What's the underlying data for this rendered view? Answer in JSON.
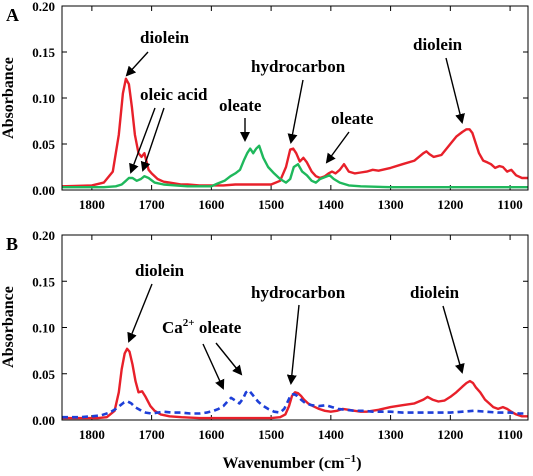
{
  "figure": {
    "xlabel_main": "Wavenumber (cm",
    "xlabel_sup": "−1",
    "xlabel_close": ")"
  },
  "chart_data": [
    {
      "type": "line",
      "panel_label": "A",
      "title": "",
      "xlabel": "",
      "ylabel": "Absorbance",
      "xlim": [
        1850,
        1070
      ],
      "ylim": [
        0,
        0.2
      ],
      "x_reversed": true,
      "x_ticks": [
        1800,
        1700,
        1600,
        1500,
        1400,
        1300,
        1200,
        1100
      ],
      "y_ticks": [
        0.0,
        0.05,
        0.1,
        0.15,
        0.2
      ],
      "y_tick_labels": [
        "0.00",
        "0.05",
        "0.10",
        "0.15",
        "0.20"
      ],
      "grid": false,
      "legend": "none",
      "series": [
        {
          "color": "#e8202a",
          "dash": "solid",
          "x": [
            1850,
            1800,
            1780,
            1765,
            1755,
            1748,
            1743,
            1738,
            1733,
            1728,
            1722,
            1717,
            1712,
            1705,
            1700,
            1690,
            1680,
            1670,
            1660,
            1650,
            1640,
            1620,
            1600,
            1580,
            1560,
            1540,
            1520,
            1500,
            1485,
            1475,
            1468,
            1463,
            1458,
            1452,
            1446,
            1440,
            1432,
            1425,
            1418,
            1410,
            1404,
            1398,
            1392,
            1385,
            1378,
            1370,
            1360,
            1350,
            1340,
            1330,
            1320,
            1300,
            1280,
            1260,
            1245,
            1240,
            1235,
            1228,
            1215,
            1200,
            1190,
            1180,
            1173,
            1168,
            1163,
            1158,
            1152,
            1145,
            1138,
            1132,
            1125,
            1118,
            1112,
            1105,
            1098,
            1090,
            1080,
            1070
          ],
          "y": [
            0.004,
            0.005,
            0.008,
            0.02,
            0.06,
            0.105,
            0.121,
            0.115,
            0.09,
            0.06,
            0.04,
            0.036,
            0.04,
            0.022,
            0.018,
            0.012,
            0.009,
            0.008,
            0.007,
            0.006,
            0.006,
            0.005,
            0.005,
            0.005,
            0.006,
            0.006,
            0.006,
            0.006,
            0.01,
            0.025,
            0.044,
            0.045,
            0.04,
            0.031,
            0.035,
            0.03,
            0.02,
            0.015,
            0.013,
            0.015,
            0.018,
            0.02,
            0.018,
            0.022,
            0.028,
            0.02,
            0.018,
            0.019,
            0.02,
            0.022,
            0.021,
            0.024,
            0.028,
            0.032,
            0.04,
            0.042,
            0.039,
            0.036,
            0.038,
            0.05,
            0.058,
            0.063,
            0.066,
            0.066,
            0.062,
            0.052,
            0.04,
            0.032,
            0.03,
            0.028,
            0.024,
            0.026,
            0.025,
            0.02,
            0.022,
            0.016,
            0.013,
            0.013
          ]
        },
        {
          "color": "#1fb85c",
          "dash": "solid",
          "x": [
            1850,
            1780,
            1760,
            1750,
            1743,
            1738,
            1732,
            1725,
            1718,
            1712,
            1705,
            1695,
            1680,
            1660,
            1640,
            1620,
            1600,
            1590,
            1578,
            1568,
            1560,
            1552,
            1545,
            1540,
            1535,
            1530,
            1525,
            1520,
            1513,
            1505,
            1495,
            1485,
            1475,
            1468,
            1462,
            1455,
            1448,
            1440,
            1432,
            1425,
            1418,
            1410,
            1402,
            1395,
            1385,
            1370,
            1350,
            1300,
            1250,
            1200,
            1150,
            1100,
            1070
          ],
          "y": [
            0.003,
            0.003,
            0.004,
            0.006,
            0.01,
            0.013,
            0.013,
            0.01,
            0.012,
            0.015,
            0.013,
            0.008,
            0.006,
            0.005,
            0.004,
            0.004,
            0.004,
            0.007,
            0.01,
            0.015,
            0.018,
            0.022,
            0.033,
            0.04,
            0.045,
            0.04,
            0.045,
            0.048,
            0.035,
            0.025,
            0.018,
            0.012,
            0.008,
            0.012,
            0.025,
            0.028,
            0.02,
            0.016,
            0.01,
            0.008,
            0.012,
            0.014,
            0.016,
            0.012,
            0.008,
            0.005,
            0.004,
            0.003,
            0.003,
            0.003,
            0.003,
            0.003,
            0.003
          ]
        }
      ],
      "annotations": [
        {
          "text": "diolein"
        },
        {
          "text": "oleic acid"
        },
        {
          "text": "oleate"
        },
        {
          "text": "hydrocarbon"
        },
        {
          "text": "oleate"
        },
        {
          "text": "diolein"
        }
      ]
    },
    {
      "type": "line",
      "panel_label": "B",
      "title": "",
      "xlabel": "Wavenumber (cm−1)",
      "ylabel": "Absorbance",
      "xlim": [
        1850,
        1070
      ],
      "ylim": [
        0,
        0.2
      ],
      "x_reversed": true,
      "x_ticks": [
        1800,
        1700,
        1600,
        1500,
        1400,
        1300,
        1200,
        1100
      ],
      "y_ticks": [
        0.0,
        0.05,
        0.1,
        0.15,
        0.2
      ],
      "y_tick_labels": [
        "0.00",
        "0.05",
        "0.10",
        "0.15",
        "0.20"
      ],
      "grid": false,
      "legend": "none",
      "series": [
        {
          "color": "#e8202a",
          "dash": "solid",
          "x": [
            1850,
            1790,
            1775,
            1762,
            1755,
            1750,
            1745,
            1741,
            1737,
            1732,
            1727,
            1722,
            1716,
            1710,
            1702,
            1695,
            1685,
            1670,
            1650,
            1620,
            1600,
            1580,
            1560,
            1540,
            1520,
            1500,
            1485,
            1476,
            1470,
            1465,
            1460,
            1455,
            1450,
            1445,
            1438,
            1430,
            1420,
            1410,
            1400,
            1390,
            1380,
            1370,
            1360,
            1350,
            1340,
            1320,
            1300,
            1280,
            1260,
            1245,
            1238,
            1230,
            1220,
            1210,
            1200,
            1190,
            1180,
            1173,
            1167,
            1162,
            1157,
            1150,
            1142,
            1135,
            1128,
            1120,
            1112,
            1105,
            1098,
            1090,
            1080,
            1070
          ],
          "y": [
            0.002,
            0.002,
            0.003,
            0.01,
            0.03,
            0.055,
            0.072,
            0.077,
            0.074,
            0.06,
            0.042,
            0.03,
            0.031,
            0.025,
            0.015,
            0.01,
            0.006,
            0.004,
            0.003,
            0.002,
            0.002,
            0.002,
            0.002,
            0.002,
            0.002,
            0.002,
            0.003,
            0.006,
            0.015,
            0.026,
            0.03,
            0.029,
            0.026,
            0.022,
            0.018,
            0.015,
            0.012,
            0.01,
            0.009,
            0.01,
            0.012,
            0.011,
            0.01,
            0.009,
            0.009,
            0.011,
            0.014,
            0.016,
            0.018,
            0.022,
            0.025,
            0.022,
            0.02,
            0.021,
            0.025,
            0.03,
            0.036,
            0.04,
            0.042,
            0.04,
            0.035,
            0.03,
            0.022,
            0.018,
            0.014,
            0.012,
            0.014,
            0.012,
            0.009,
            0.006,
            0.004,
            0.004
          ]
        },
        {
          "color": "#1e3fd8",
          "dash": "dashed",
          "x": [
            1850,
            1820,
            1800,
            1785,
            1770,
            1760,
            1752,
            1746,
            1740,
            1734,
            1728,
            1720,
            1710,
            1700,
            1690,
            1680,
            1665,
            1650,
            1635,
            1620,
            1608,
            1596,
            1588,
            1580,
            1573,
            1567,
            1560,
            1553,
            1547,
            1542,
            1537,
            1532,
            1527,
            1522,
            1515,
            1505,
            1495,
            1485,
            1478,
            1472,
            1467,
            1462,
            1456,
            1450,
            1442,
            1432,
            1420,
            1408,
            1398,
            1388,
            1375,
            1360,
            1345,
            1330,
            1315,
            1300,
            1280,
            1260,
            1240,
            1220,
            1200,
            1180,
            1160,
            1140,
            1120,
            1100,
            1085,
            1070
          ],
          "y": [
            0.003,
            0.003,
            0.004,
            0.005,
            0.008,
            0.012,
            0.016,
            0.019,
            0.02,
            0.018,
            0.014,
            0.011,
            0.008,
            0.007,
            0.008,
            0.009,
            0.008,
            0.008,
            0.007,
            0.007,
            0.008,
            0.01,
            0.012,
            0.015,
            0.02,
            0.024,
            0.021,
            0.018,
            0.023,
            0.03,
            0.032,
            0.028,
            0.024,
            0.02,
            0.016,
            0.012,
            0.009,
            0.008,
            0.012,
            0.02,
            0.027,
            0.028,
            0.026,
            0.022,
            0.018,
            0.016,
            0.015,
            0.016,
            0.014,
            0.012,
            0.011,
            0.01,
            0.01,
            0.009,
            0.009,
            0.009,
            0.008,
            0.008,
            0.008,
            0.008,
            0.008,
            0.009,
            0.01,
            0.009,
            0.008,
            0.008,
            0.007,
            0.007
          ]
        }
      ],
      "annotations": [
        {
          "text": "diolein"
        },
        {
          "text": "Ca",
          "sup": "2+",
          "text_after": " oleate"
        },
        {
          "text": "hydrocarbon"
        },
        {
          "text": "diolein"
        }
      ]
    }
  ]
}
